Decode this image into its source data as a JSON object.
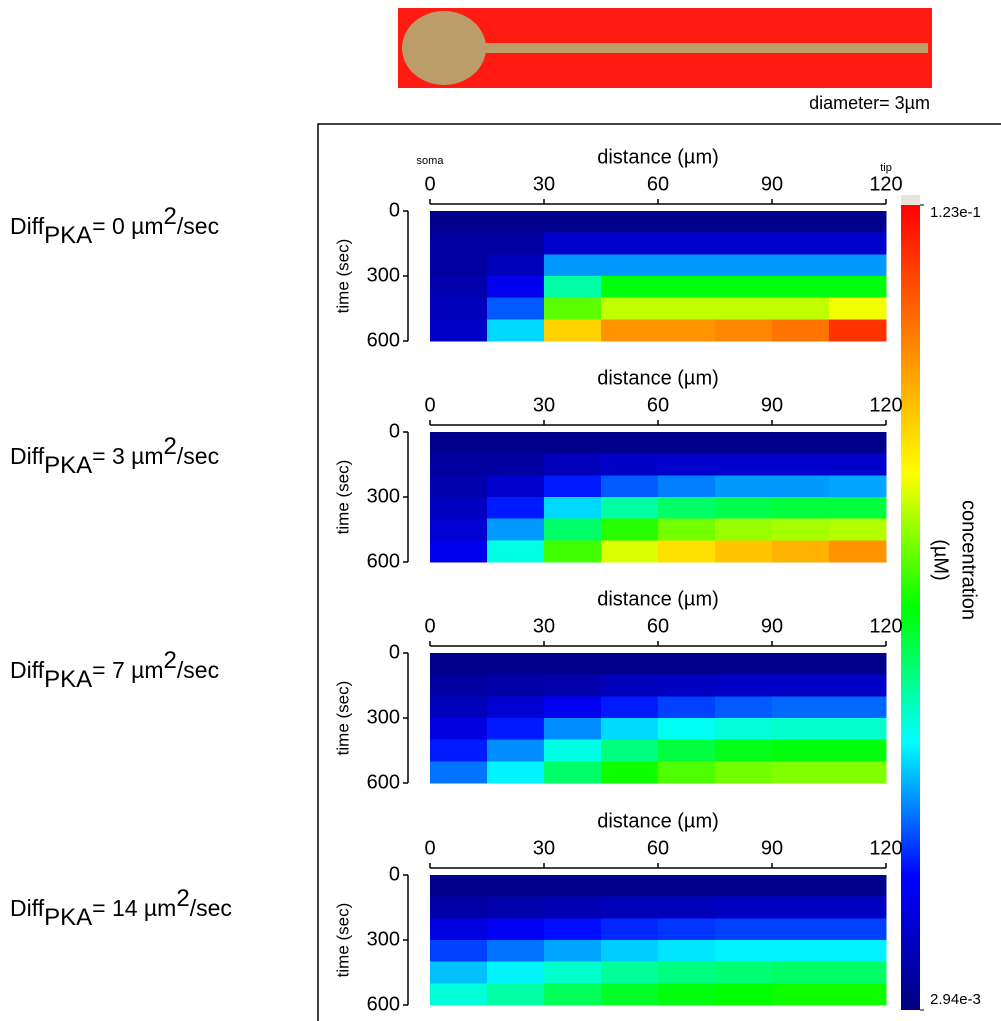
{
  "diagram": {
    "caption": "diameter= 3µm"
  },
  "colorbar": {
    "label": [
      "concentration",
      "(µM)"
    ],
    "lim": [
      0.00294,
      0.123
    ],
    "ticks": [
      {
        "value": 0.123,
        "label": "1.23e-1"
      },
      {
        "value": 0.00294,
        "label": "2.94e-3"
      }
    ],
    "colormap": [
      "#000080",
      "#0000ff",
      "#00ffff",
      "#00ff00",
      "#ffff00",
      "#ff8000",
      "#ff0000"
    ]
  },
  "chart_data": [
    {
      "type": "heatmap",
      "title_parts": [
        "Diff",
        "PKA",
        "= 0 µm",
        "2",
        "/sec"
      ],
      "xlabel": "distance (µm)",
      "ylabel": "time (sec)",
      "annotations": [
        {
          "text": "soma",
          "x": 0
        },
        {
          "text": "tip",
          "x": 120
        }
      ],
      "xlim": [
        0,
        120
      ],
      "xticks": [
        0,
        30,
        60,
        90,
        120
      ],
      "ylim": [
        0,
        600
      ],
      "yticks": [
        0,
        300,
        600
      ],
      "x": [
        7.5,
        22.5,
        37.5,
        52.5,
        67.5,
        82.5,
        97.5,
        112.5
      ],
      "y": [
        50,
        150,
        250,
        350,
        450,
        550
      ],
      "z": [
        [
          0.005,
          0.005,
          0.005,
          0.005,
          0.005,
          0.005,
          0.005,
          0.005
        ],
        [
          0.008,
          0.008,
          0.015,
          0.015,
          0.015,
          0.015,
          0.015,
          0.015
        ],
        [
          0.008,
          0.012,
          0.035,
          0.035,
          0.035,
          0.035,
          0.035,
          0.035
        ],
        [
          0.01,
          0.02,
          0.05,
          0.062,
          0.062,
          0.062,
          0.062,
          0.062
        ],
        [
          0.012,
          0.03,
          0.07,
          0.078,
          0.078,
          0.078,
          0.078,
          0.082
        ],
        [
          0.014,
          0.04,
          0.09,
          0.1,
          0.1,
          0.102,
          0.105,
          0.115
        ]
      ]
    },
    {
      "type": "heatmap",
      "title_parts": [
        "Diff",
        "PKA",
        "= 3 µm",
        "2",
        "/sec"
      ],
      "xlabel": "distance (µm)",
      "ylabel": "time (sec)",
      "xlim": [
        0,
        120
      ],
      "xticks": [
        0,
        30,
        60,
        90,
        120
      ],
      "ylim": [
        0,
        600
      ],
      "yticks": [
        0,
        300,
        600
      ],
      "x": [
        7.5,
        22.5,
        37.5,
        52.5,
        67.5,
        82.5,
        97.5,
        112.5
      ],
      "y": [
        50,
        150,
        250,
        350,
        450,
        550
      ],
      "z": [
        [
          0.005,
          0.005,
          0.005,
          0.005,
          0.005,
          0.005,
          0.005,
          0.005
        ],
        [
          0.008,
          0.008,
          0.012,
          0.014,
          0.015,
          0.015,
          0.015,
          0.015
        ],
        [
          0.01,
          0.015,
          0.025,
          0.03,
          0.033,
          0.035,
          0.035,
          0.036
        ],
        [
          0.013,
          0.025,
          0.04,
          0.05,
          0.055,
          0.057,
          0.058,
          0.058
        ],
        [
          0.016,
          0.035,
          0.055,
          0.066,
          0.072,
          0.075,
          0.076,
          0.077
        ],
        [
          0.02,
          0.045,
          0.068,
          0.08,
          0.088,
          0.092,
          0.095,
          0.1
        ]
      ]
    },
    {
      "type": "heatmap",
      "title_parts": [
        "Diff",
        "PKA",
        "= 7 µm",
        "2",
        "/sec"
      ],
      "xlabel": "distance (µm)",
      "ylabel": "time (sec)",
      "xlim": [
        0,
        120
      ],
      "xticks": [
        0,
        30,
        60,
        90,
        120
      ],
      "ylim": [
        0,
        600
      ],
      "yticks": [
        0,
        300,
        600
      ],
      "x": [
        7.5,
        22.5,
        37.5,
        52.5,
        67.5,
        82.5,
        97.5,
        112.5
      ],
      "y": [
        50,
        150,
        250,
        350,
        450,
        550
      ],
      "z": [
        [
          0.005,
          0.005,
          0.005,
          0.005,
          0.005,
          0.005,
          0.005,
          0.005
        ],
        [
          0.008,
          0.009,
          0.01,
          0.012,
          0.013,
          0.014,
          0.014,
          0.014
        ],
        [
          0.012,
          0.016,
          0.021,
          0.025,
          0.028,
          0.03,
          0.031,
          0.031
        ],
        [
          0.018,
          0.025,
          0.034,
          0.04,
          0.044,
          0.046,
          0.047,
          0.047
        ],
        [
          0.025,
          0.034,
          0.045,
          0.053,
          0.058,
          0.061,
          0.062,
          0.062
        ],
        [
          0.032,
          0.042,
          0.055,
          0.064,
          0.069,
          0.072,
          0.073,
          0.073
        ]
      ]
    },
    {
      "type": "heatmap",
      "title_parts": [
        "Diff",
        "PKA",
        "= 14 µm",
        "2",
        "/sec"
      ],
      "xlabel": "distance (µm)",
      "ylabel": "time (sec)",
      "xlim": [
        0,
        120
      ],
      "xticks": [
        0,
        30,
        60,
        90,
        120
      ],
      "ylim": [
        0,
        600
      ],
      "yticks": [
        0,
        300,
        600
      ],
      "x": [
        7.5,
        22.5,
        37.5,
        52.5,
        67.5,
        82.5,
        97.5,
        112.5
      ],
      "y": [
        50,
        150,
        250,
        350,
        450,
        550
      ],
      "z": [
        [
          0.005,
          0.005,
          0.005,
          0.005,
          0.005,
          0.005,
          0.005,
          0.005
        ],
        [
          0.009,
          0.01,
          0.011,
          0.012,
          0.012,
          0.013,
          0.013,
          0.013
        ],
        [
          0.018,
          0.021,
          0.024,
          0.026,
          0.027,
          0.028,
          0.028,
          0.028
        ],
        [
          0.028,
          0.032,
          0.036,
          0.039,
          0.041,
          0.042,
          0.042,
          0.042
        ],
        [
          0.038,
          0.042,
          0.047,
          0.051,
          0.053,
          0.054,
          0.055,
          0.055
        ],
        [
          0.046,
          0.05,
          0.056,
          0.06,
          0.062,
          0.063,
          0.064,
          0.064
        ]
      ]
    }
  ]
}
